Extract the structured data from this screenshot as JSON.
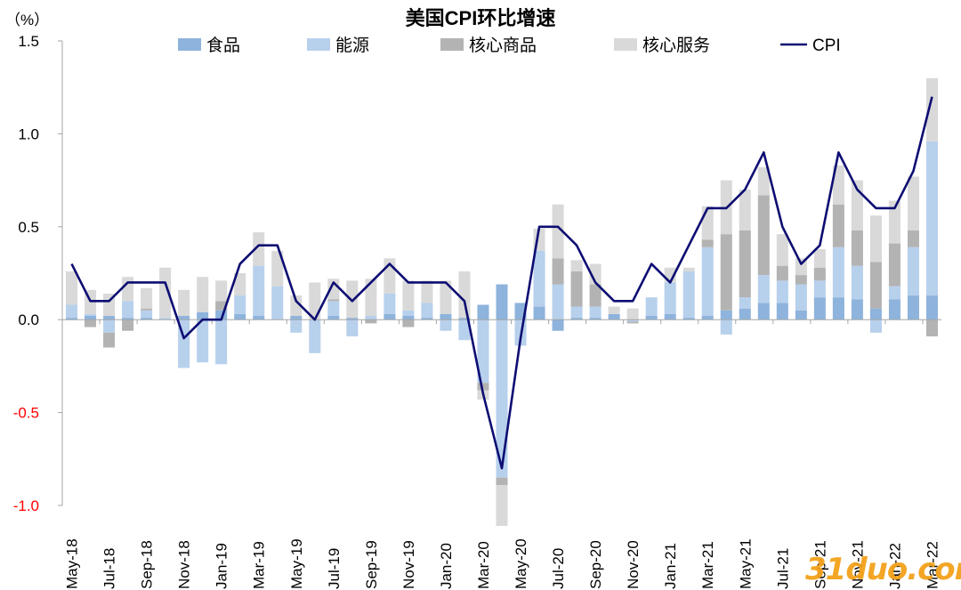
{
  "chart_data": {
    "type": "bar",
    "title": "美国CPI环比增速",
    "ylabel": "（%）",
    "ylim": [
      -1.0,
      1.5
    ],
    "yticks": [
      {
        "v": 1.5,
        "label": "1.5"
      },
      {
        "v": 1.0,
        "label": "1.0"
      },
      {
        "v": 0.5,
        "label": "0.5"
      },
      {
        "v": 0.0,
        "label": "0.0"
      },
      {
        "v": -0.5,
        "label": "-0.5"
      },
      {
        "v": -1.0,
        "label": "-1.0"
      }
    ],
    "grid": false,
    "stacked": true,
    "legend_position": "top",
    "categories": [
      "May-18",
      "Jun-18",
      "Jul-18",
      "Aug-18",
      "Sep-18",
      "Oct-18",
      "Nov-18",
      "Dec-18",
      "Jan-19",
      "Feb-19",
      "Mar-19",
      "Apr-19",
      "May-19",
      "Jun-19",
      "Jul-19",
      "Aug-19",
      "Sep-19",
      "Oct-19",
      "Nov-19",
      "Dec-19",
      "Jan-20",
      "Feb-20",
      "Mar-20",
      "Apr-20",
      "May-20",
      "Jun-20",
      "Jul-20",
      "Aug-20",
      "Sep-20",
      "Oct-20",
      "Nov-20",
      "Dec-20",
      "Jan-21",
      "Feb-21",
      "Mar-21",
      "Apr-21",
      "May-21",
      "Jun-21",
      "Jul-21",
      "Aug-21",
      "Sep-21",
      "Oct-21",
      "Nov-21",
      "Dec-21",
      "Jan-22",
      "Feb-22",
      "Mar-22"
    ],
    "tick_labels": [
      "May-18",
      "Jul-18",
      "Sep-18",
      "Nov-18",
      "Jan-19",
      "Mar-19",
      "May-19",
      "Jul-19",
      "Sep-19",
      "Nov-19",
      "Jan-20",
      "Mar-20",
      "May-20",
      "Jul-20",
      "Sep-20",
      "Nov-20",
      "Jan-21",
      "Mar-21",
      "May-21",
      "Jul-21",
      "Sep-21",
      "Nov-21",
      "Jan-22",
      "Mar-22"
    ],
    "series": [
      {
        "name": "食品",
        "kind": "bar",
        "color": "#8eb3dc",
        "values": [
          0.01,
          0.02,
          0.02,
          0.01,
          0.01,
          0.0,
          0.02,
          0.04,
          0.05,
          0.03,
          0.02,
          0.0,
          0.02,
          0.0,
          0.02,
          0.01,
          0.0,
          0.03,
          0.02,
          0.01,
          0.03,
          0.01,
          0.08,
          0.19,
          0.09,
          0.07,
          -0.06,
          0.01,
          0.01,
          0.03,
          0.0,
          0.02,
          0.03,
          0.01,
          0.02,
          0.05,
          0.06,
          0.09,
          0.09,
          0.05,
          0.12,
          0.12,
          0.11,
          0.06,
          0.11,
          0.13,
          0.13
        ]
      },
      {
        "name": "能源",
        "kind": "bar",
        "color": "#b7d0ec",
        "values": [
          0.07,
          0.01,
          -0.07,
          0.09,
          0.04,
          0.01,
          -0.26,
          -0.23,
          -0.24,
          0.1,
          0.27,
          0.18,
          -0.07,
          -0.18,
          0.08,
          -0.09,
          0.02,
          0.11,
          0.03,
          0.08,
          -0.06,
          -0.11,
          -0.34,
          -0.85,
          -0.14,
          0.3,
          0.19,
          0.06,
          0.06,
          0.0,
          -0.01,
          0.1,
          0.17,
          0.25,
          0.37,
          -0.08,
          0.06,
          0.15,
          0.12,
          0.14,
          0.09,
          0.27,
          0.18,
          -0.07,
          0.07,
          0.26,
          0.83
        ]
      },
      {
        "name": "核心商品",
        "kind": "bar",
        "color": "#b3b3b3",
        "values": [
          0.0,
          -0.04,
          -0.08,
          -0.06,
          0.01,
          0.0,
          0.0,
          0.0,
          0.05,
          0.0,
          0.0,
          0.0,
          0.0,
          0.0,
          0.01,
          0.0,
          -0.02,
          0.0,
          -0.04,
          0.0,
          0.0,
          0.0,
          -0.04,
          -0.04,
          0.0,
          0.0,
          0.14,
          0.19,
          0.12,
          0.0,
          -0.01,
          0.0,
          0.0,
          0.0,
          0.04,
          0.41,
          0.36,
          0.43,
          0.08,
          0.05,
          0.07,
          0.23,
          0.19,
          0.25,
          0.23,
          0.09,
          -0.09
        ]
      },
      {
        "name": "核心服务",
        "kind": "bar",
        "color": "#d9d9d9",
        "values": [
          0.18,
          0.13,
          0.12,
          0.13,
          0.11,
          0.27,
          0.14,
          0.19,
          0.11,
          0.12,
          0.18,
          0.19,
          0.11,
          0.2,
          0.11,
          0.2,
          0.2,
          0.19,
          0.16,
          0.12,
          0.18,
          0.25,
          -0.05,
          -0.22,
          0.0,
          0.12,
          0.29,
          0.06,
          0.11,
          0.04,
          0.06,
          0.0,
          0.08,
          0.02,
          0.18,
          0.29,
          0.22,
          0.15,
          0.17,
          0.09,
          0.1,
          0.21,
          0.27,
          0.25,
          0.23,
          0.29,
          0.34
        ]
      },
      {
        "name": "CPI",
        "kind": "line",
        "color": "#0d0d73",
        "values": [
          0.3,
          0.1,
          0.1,
          0.2,
          0.2,
          0.2,
          -0.1,
          0.0,
          0.0,
          0.3,
          0.4,
          0.4,
          0.1,
          0.0,
          0.2,
          0.1,
          0.2,
          0.3,
          0.2,
          0.2,
          0.2,
          0.1,
          -0.4,
          -0.8,
          -0.1,
          0.5,
          0.5,
          0.4,
          0.2,
          0.1,
          0.1,
          0.3,
          0.2,
          0.4,
          0.6,
          0.6,
          0.7,
          0.9,
          0.5,
          0.3,
          0.4,
          0.9,
          0.7,
          0.6,
          0.6,
          0.8,
          1.2
        ]
      }
    ],
    "colors": {
      "axis": "#a6a6a6",
      "negative_tick": "#ff0000",
      "text": "#000000"
    }
  },
  "watermark": "31duo.com"
}
